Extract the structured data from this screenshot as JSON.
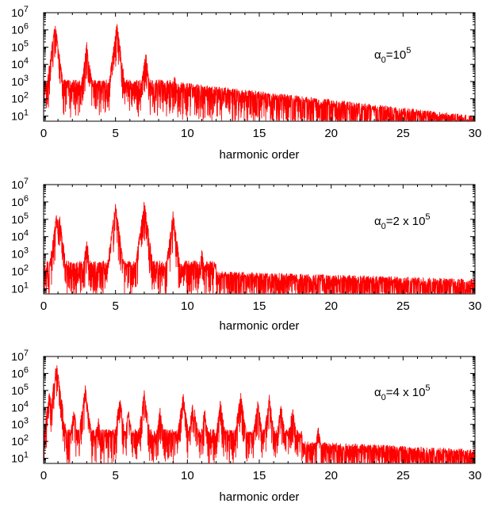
{
  "colors": {
    "series": "#ff0000",
    "axes": "#000000"
  },
  "chart_data": [
    {
      "type": "line",
      "title": "",
      "xlabel": "harmonic order",
      "ylabel": "",
      "xlim": [
        0,
        30
      ],
      "ylim": [
        5,
        10000000
      ],
      "yscale": "log",
      "xticks": [
        0,
        5,
        10,
        15,
        20,
        25,
        30
      ],
      "yticks": [
        "10^1",
        "10^2",
        "10^3",
        "10^4",
        "10^5",
        "10^6",
        "10^7"
      ],
      "grid": false,
      "annotation": {
        "base": "α",
        "sub": "0",
        "text": "=10",
        "sup": "5"
      },
      "peaks": [
        {
          "x": 0.8,
          "y": 3000000
        },
        {
          "x": 3.0,
          "y": 200000
        },
        {
          "x": 5.1,
          "y": 3000000
        },
        {
          "x": 7.1,
          "y": 60000
        },
        {
          "x": 9.1,
          "y": 3000
        }
      ],
      "series": [
        {
          "values": []
        }
      ]
    },
    {
      "type": "line",
      "title": "",
      "xlabel": "harmonic order",
      "ylabel": "",
      "xlim": [
        0,
        30
      ],
      "ylim": [
        5,
        10000000
      ],
      "yscale": "log",
      "xticks": [
        0,
        5,
        10,
        15,
        20,
        25,
        30
      ],
      "yticks": [
        "10^1",
        "10^2",
        "10^3",
        "10^4",
        "10^5",
        "10^6",
        "10^7"
      ],
      "grid": false,
      "annotation": {
        "base": "α",
        "sub": "0",
        "text": "=2 x 10",
        "sup": "5"
      },
      "peaks": [
        {
          "x": 0.9,
          "y": 250000
        },
        {
          "x": 1.1,
          "y": 200000
        },
        {
          "x": 3.0,
          "y": 8000
        },
        {
          "x": 5.0,
          "y": 1000000
        },
        {
          "x": 7.0,
          "y": 1500000
        },
        {
          "x": 9.0,
          "y": 300000
        },
        {
          "x": 11.0,
          "y": 2000
        }
      ],
      "series": [
        {
          "values": []
        }
      ]
    },
    {
      "type": "line",
      "title": "",
      "xlabel": "harmonic order",
      "ylabel": "",
      "xlim": [
        0,
        30
      ],
      "ylim": [
        5,
        10000000
      ],
      "yscale": "log",
      "xticks": [
        0,
        5,
        10,
        15,
        20,
        25,
        30
      ],
      "yticks": [
        "10^1",
        "10^2",
        "10^3",
        "10^4",
        "10^5",
        "10^6",
        "10^7"
      ],
      "grid": false,
      "annotation": {
        "base": "α",
        "sub": "0",
        "text": "=4 x 10",
        "sup": "5"
      },
      "peaks": [
        {
          "x": 0.4,
          "y": 100000
        },
        {
          "x": 0.9,
          "y": 5000000
        },
        {
          "x": 2.1,
          "y": 10000
        },
        {
          "x": 2.9,
          "y": 200000
        },
        {
          "x": 3.8,
          "y": 3000
        },
        {
          "x": 5.3,
          "y": 50000
        },
        {
          "x": 5.9,
          "y": 10000
        },
        {
          "x": 7.0,
          "y": 100000
        },
        {
          "x": 8.1,
          "y": 10000
        },
        {
          "x": 9.7,
          "y": 80000
        },
        {
          "x": 10.4,
          "y": 40000
        },
        {
          "x": 11.2,
          "y": 10000
        },
        {
          "x": 12.3,
          "y": 30000
        },
        {
          "x": 13.7,
          "y": 100000
        },
        {
          "x": 14.9,
          "y": 30000
        },
        {
          "x": 15.7,
          "y": 60000
        },
        {
          "x": 16.5,
          "y": 20000
        },
        {
          "x": 17.3,
          "y": 15000
        },
        {
          "x": 19.1,
          "y": 1000
        }
      ],
      "series": [
        {
          "values": []
        }
      ]
    }
  ]
}
